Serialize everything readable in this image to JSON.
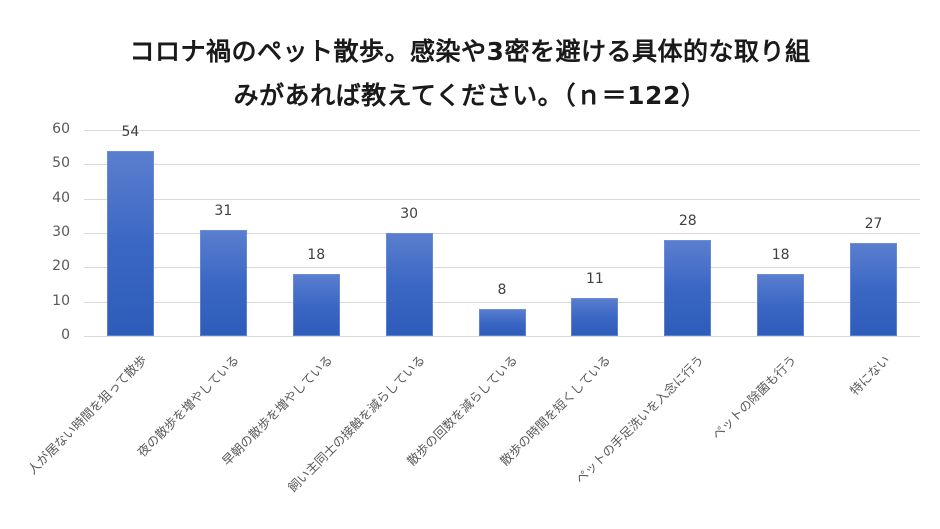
{
  "chart_data": {
    "type": "bar",
    "title": "コロナ禍のペット散歩。感染や3密を避ける具体的な取り組みがあれば教えてください。（ｎ＝122）",
    "title_lines": [
      "コロナ禍のペット散歩。感染や3密を避ける具体的な取り組",
      "みがあれば教えてください。（ｎ＝122）"
    ],
    "xlabel": "",
    "ylabel": "",
    "ylim": [
      0,
      60
    ],
    "yticks": [
      "0",
      "10",
      "20",
      "30",
      "40",
      "50",
      "60"
    ],
    "grid": true,
    "legend": "none",
    "categories": [
      "人が居ない時間を狙って散歩",
      "夜の散歩を増やしている",
      "早朝の散歩を増やしている",
      "飼い主同士の接触を減らしている",
      "散歩の回数を減らしている",
      "散歩の時間を短くしている",
      "ペットの手足洗いを入念に行う",
      "ペットの除菌も行う",
      "特にない"
    ],
    "values": [
      54,
      31,
      18,
      30,
      8,
      11,
      28,
      18,
      27
    ],
    "data_labels": [
      "54",
      "31",
      "18",
      "30",
      "8",
      "11",
      "28",
      "18",
      "27"
    ],
    "bar_color": "#4472c4"
  }
}
